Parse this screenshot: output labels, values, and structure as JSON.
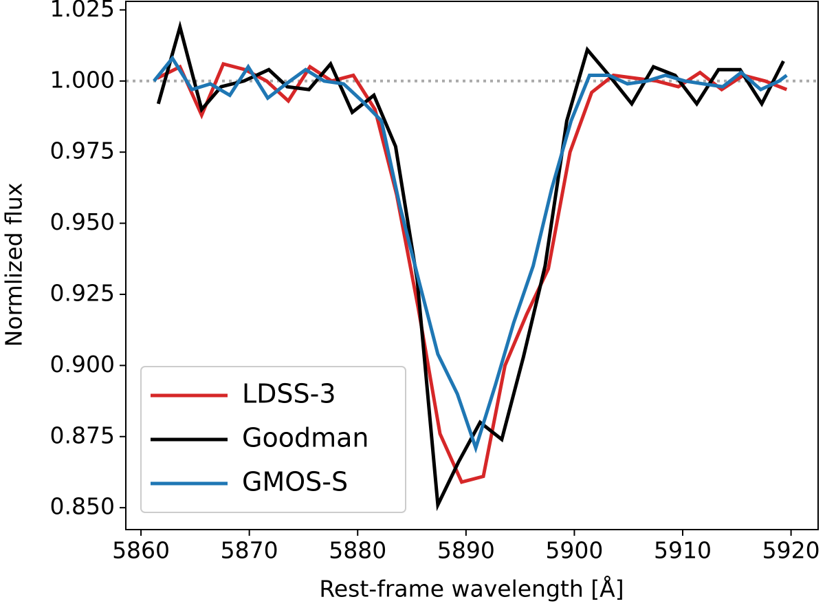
{
  "chart_data": {
    "type": "line",
    "xlabel": "Rest-frame wavelength [Å]",
    "ylabel": "Normlized flux",
    "xlim": [
      5858.6,
      5922.5
    ],
    "ylim": [
      0.8423,
      1.028
    ],
    "xticks": [
      5860,
      5870,
      5880,
      5890,
      5900,
      5910,
      5920
    ],
    "yticks": [
      {
        "value": 0.85,
        "label": "0.850"
      },
      {
        "value": 0.875,
        "label": "0.875"
      },
      {
        "value": 0.9,
        "label": "0.900"
      },
      {
        "value": 0.925,
        "label": "0.925"
      },
      {
        "value": 0.95,
        "label": "0.950"
      },
      {
        "value": 0.975,
        "label": "0.975"
      },
      {
        "value": 1.0,
        "label": "1.000"
      },
      {
        "value": 1.025,
        "label": "1.025"
      }
    ],
    "hline": {
      "value": 1.0,
      "color": "#aaaaaa",
      "style": "dotted"
    },
    "legend": "lower left",
    "series": [
      {
        "name": "LDSS-3",
        "color": "#d62728",
        "x": [
          5861.5,
          5863.6,
          5865.6,
          5867.6,
          5869.6,
          5871.6,
          5873.6,
          5875.6,
          5877.6,
          5879.6,
          5881.6,
          5883.6,
          5885.6,
          5887.6,
          5889.6,
          5891.6,
          5893.6,
          5895.6,
          5897.6,
          5899.6,
          5901.6,
          5903.6,
          5905.6,
          5907.6,
          5909.6,
          5911.6,
          5913.6,
          5915.6,
          5917.6,
          5919.6
        ],
        "values": [
          1.001,
          1.005,
          0.988,
          1.006,
          1.004,
          1.0,
          0.993,
          1.005,
          1.0,
          1.002,
          0.99,
          0.96,
          0.92,
          0.876,
          0.859,
          0.861,
          0.9,
          0.918,
          0.934,
          0.975,
          0.996,
          1.002,
          1.001,
          1.0,
          0.998,
          1.003,
          0.997,
          1.002,
          1.0,
          0.997
        ]
      },
      {
        "name": "Goodman",
        "color": "#000000",
        "x": [
          5861.6,
          5863.6,
          5865.6,
          5867.4,
          5869.5,
          5871.8,
          5873.5,
          5875.5,
          5877.5,
          5879.5,
          5881.5,
          5883.5,
          5885.5,
          5887.4,
          5889.3,
          5891.3,
          5893.3,
          5895.3,
          5897.3,
          5899.3,
          5901.2,
          5903.2,
          5905.3,
          5907.3,
          5909.3,
          5911.3,
          5913.3,
          5915.3,
          5917.3,
          5919.3
        ],
        "values": [
          0.992,
          1.019,
          0.99,
          0.998,
          1.0,
          1.004,
          0.998,
          0.997,
          1.006,
          0.989,
          0.995,
          0.977,
          0.93,
          0.851,
          0.866,
          0.88,
          0.874,
          0.903,
          0.935,
          0.986,
          1.011,
          1.002,
          0.992,
          1.005,
          1.002,
          0.992,
          1.004,
          1.004,
          0.992,
          1.007
        ]
      },
      {
        "name": "GMOS-S",
        "color": "#1f77b4",
        "x": [
          5861.2,
          5862.9,
          5864.7,
          5866.4,
          5868.2,
          5869.9,
          5871.7,
          5873.4,
          5875.2,
          5876.9,
          5878.7,
          5880.4,
          5882.2,
          5883.9,
          5885.7,
          5887.4,
          5889.2,
          5890.9,
          5892.7,
          5894.4,
          5896.2,
          5897.9,
          5899.7,
          5901.4,
          5903.2,
          5904.9,
          5906.7,
          5908.4,
          5910.2,
          5911.9,
          5913.7,
          5915.4,
          5917.2,
          5918.9,
          5919.6
        ],
        "values": [
          1.0,
          1.008,
          0.997,
          0.999,
          0.995,
          1.005,
          0.994,
          0.999,
          1.004,
          1.0,
          0.999,
          0.993,
          0.986,
          0.956,
          0.929,
          0.904,
          0.89,
          0.871,
          0.893,
          0.915,
          0.935,
          0.962,
          0.986,
          1.002,
          1.002,
          0.999,
          1.0,
          1.002,
          1.0,
          0.999,
          0.998,
          1.003,
          0.997,
          1.0,
          1.002
        ]
      }
    ]
  }
}
